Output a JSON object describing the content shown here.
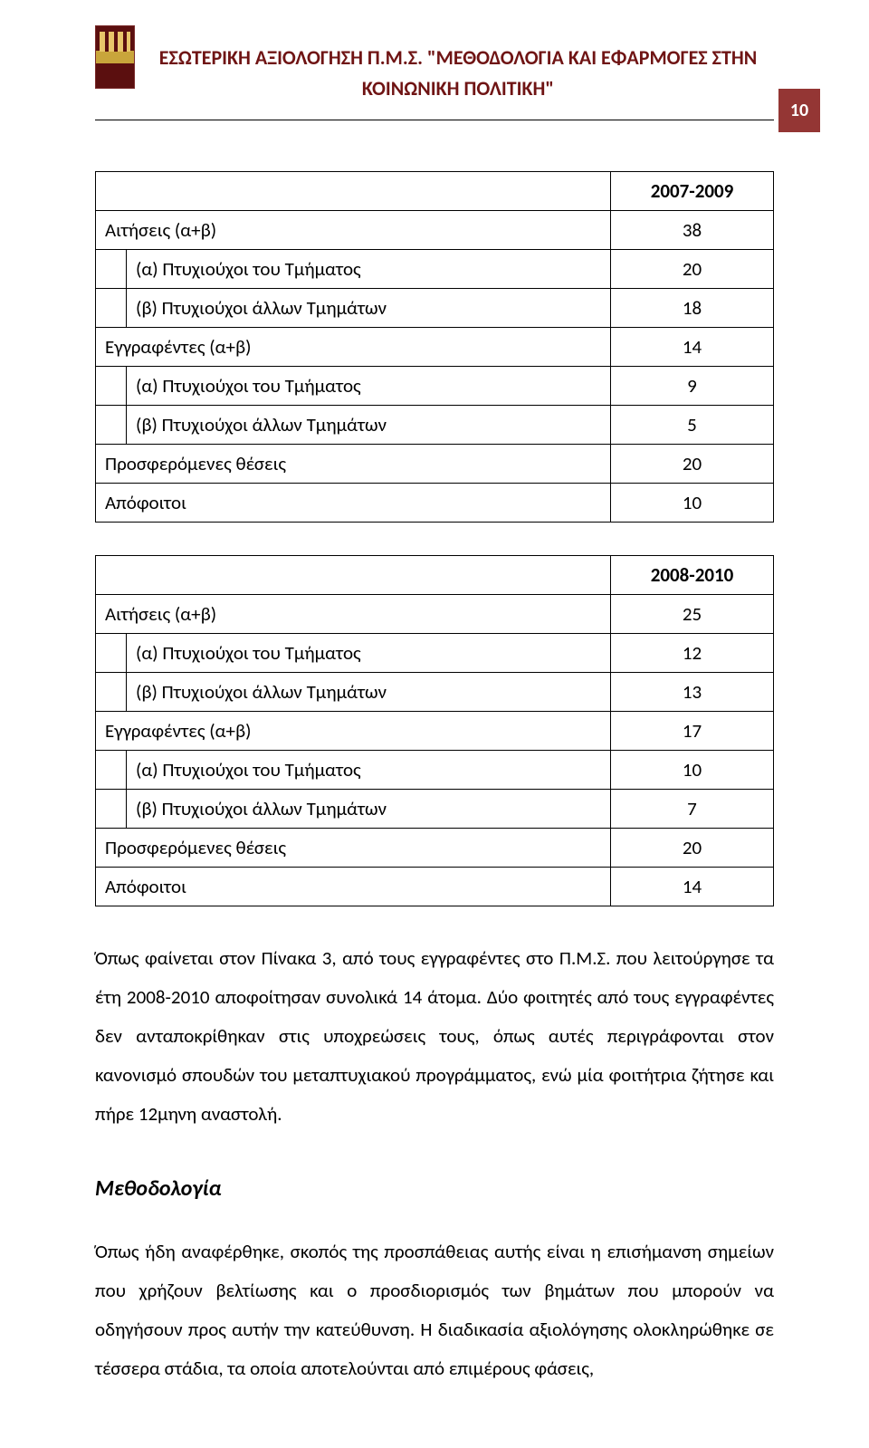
{
  "header": {
    "line1": "ΕΣΩΤΕΡΙΚΗ ΑΞΙΟΛΟΓΗΣΗ Π.Μ.Σ. \"ΜΕΘΟΔΟΛΟΓΙΑ ΚΑΙ ΕΦΑΡΜΟΓΕΣ ΣΤΗΝ",
    "line2": "ΚΟΙΝΩΝΙΚΗ ΠΟΛΙΤΙΚΗ\"",
    "page_number": "10"
  },
  "table1": {
    "period": "2007-2009",
    "rows": [
      {
        "label": "Αιτήσεις (α+β)",
        "value": "38",
        "indent": false
      },
      {
        "label": "(α) Πτυχιούχοι του Τμήματος",
        "value": "20",
        "indent": true
      },
      {
        "label": "(β) Πτυχιούχοι άλλων Τμημάτων",
        "value": "18",
        "indent": true
      },
      {
        "label": "Εγγραφέντες (α+β)",
        "value": "14",
        "indent": false
      },
      {
        "label": "(α) Πτυχιούχοι του Τμήματος",
        "value": "9",
        "indent": true
      },
      {
        "label": "(β) Πτυχιούχοι άλλων Τμημάτων",
        "value": "5",
        "indent": true
      },
      {
        "label": "Προσφερόμενες θέσεις",
        "value": "20",
        "indent": false
      },
      {
        "label": "Απόφοιτοι",
        "value": "10",
        "indent": false
      }
    ]
  },
  "table2": {
    "period": "2008-2010",
    "rows": [
      {
        "label": "Αιτήσεις (α+β)",
        "value": "25",
        "indent": false
      },
      {
        "label": "(α) Πτυχιούχοι του Τμήματος",
        "value": "12",
        "indent": true
      },
      {
        "label": "(β) Πτυχιούχοι άλλων Τμημάτων",
        "value": "13",
        "indent": true
      },
      {
        "label": "Εγγραφέντες (α+β)",
        "value": "17",
        "indent": false
      },
      {
        "label": "(α) Πτυχιούχοι του Τμήματος",
        "value": "10",
        "indent": true
      },
      {
        "label": "(β) Πτυχιούχοι άλλων Τμημάτων",
        "value": "7",
        "indent": true
      },
      {
        "label": "Προσφερόμενες θέσεις",
        "value": "20",
        "indent": false
      },
      {
        "label": "Απόφοιτοι",
        "value": "14",
        "indent": false
      }
    ]
  },
  "paragraphs": {
    "p1": "Όπως φαίνεται στον Πίνακα 3, από τους εγγραφέντες στο Π.Μ.Σ. που λειτούργησε τα έτη 2008-2010 αποφοίτησαν συνολικά 14 άτομα. Δύο φοιτητές από τους εγγραφέντες δεν ανταποκρίθηκαν στις υποχρεώσεις τους, όπως αυτές περιγράφονται στον κανονισμό σπουδών του μεταπτυχιακού προγράμματος, ενώ μία φοιτήτρια ζήτησε και πήρε 12μηνη αναστολή.",
    "method_heading": "Μεθοδολογία",
    "p2": "Όπως ήδη αναφέρθηκε, σκοπός της προσπάθειας αυτής είναι η επισήμανση σημείων που χρήζουν βελτίωσης και ο προσδιορισμός των βημάτων που μπορούν να οδηγήσουν προς αυτήν την κατεύθυνση. Η διαδικασία αξιολόγησης ολοκληρώθηκε σε τέσσερα στάδια, τα οποία αποτελούνται από επιμέρους φάσεις,"
  },
  "colors": {
    "header_text": "#6f1414",
    "badge_bg": "#943634"
  }
}
